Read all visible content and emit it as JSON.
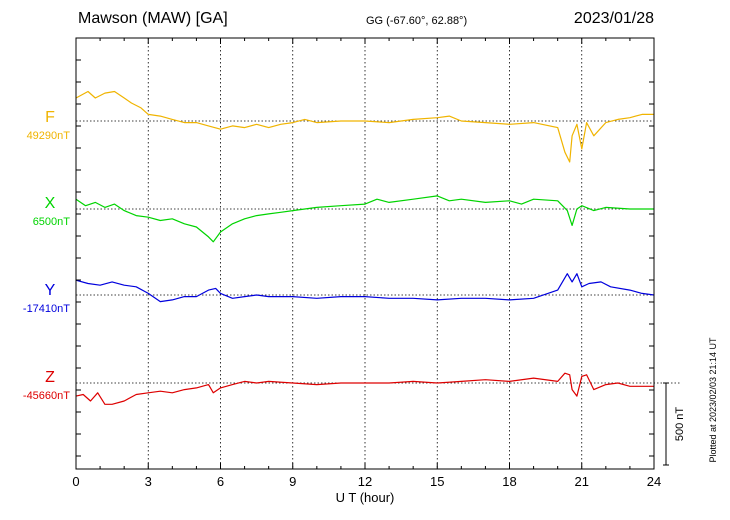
{
  "header": {
    "station": "Mawson (MAW)  [GA]",
    "coords": "GG (-67.60°,  62.88°)",
    "date": "2023/01/28"
  },
  "footer": {
    "plotted": "Plotted at 2023/02/03 21:14 UT"
  },
  "chart_data": {
    "type": "line",
    "xlabel": "U T (hour)",
    "xlim": [
      0,
      24
    ],
    "xticks": [
      0,
      3,
      6,
      9,
      12,
      15,
      18,
      21,
      24
    ],
    "xtick_labels": [
      "0",
      "3",
      "6",
      "9",
      "12",
      "15",
      "18",
      "21",
      "24"
    ],
    "scale_bar": {
      "value_nT": 500,
      "label": "500 nT"
    },
    "series": [
      {
        "name": "F",
        "baseline_label": "49290nT",
        "baseline_nT": 49290,
        "color": "#f0b400",
        "x": [
          0,
          0.5,
          0.8,
          1.2,
          1.6,
          2.0,
          2.3,
          2.7,
          3.0,
          3.5,
          4.0,
          4.5,
          5.0,
          5.5,
          6.0,
          6.5,
          7.0,
          7.5,
          8.0,
          8.5,
          9.0,
          9.5,
          10.0,
          11.0,
          12.0,
          13.0,
          14.0,
          15.0,
          15.5,
          16.0,
          17.0,
          18.0,
          19.0,
          20.0,
          20.3,
          20.5,
          20.6,
          20.8,
          21.0,
          21.2,
          21.5,
          22.0,
          22.5,
          23.0,
          23.5,
          24.0
        ],
        "y": [
          49430,
          49470,
          49430,
          49460,
          49470,
          49430,
          49400,
          49370,
          49330,
          49320,
          49300,
          49280,
          49280,
          49260,
          49240,
          49260,
          49250,
          49270,
          49250,
          49270,
          49280,
          49300,
          49280,
          49290,
          49290,
          49280,
          49300,
          49310,
          49320,
          49290,
          49280,
          49270,
          49280,
          49250,
          49100,
          49040,
          49200,
          49270,
          49120,
          49280,
          49200,
          49280,
          49300,
          49310,
          49330,
          49330
        ]
      },
      {
        "name": "X",
        "baseline_label": "6500nT",
        "baseline_nT": 6500,
        "color": "#00d400",
        "x": [
          0,
          0.4,
          0.8,
          1.2,
          1.6,
          2.0,
          2.5,
          3.0,
          3.5,
          4.0,
          4.5,
          5.0,
          5.5,
          5.7,
          6.0,
          6.5,
          7.0,
          7.5,
          8.0,
          8.5,
          9.0,
          9.5,
          10.0,
          11.0,
          12.0,
          12.5,
          13.0,
          14.0,
          15.0,
          15.5,
          16.0,
          17.0,
          18.0,
          18.5,
          19.0,
          20.0,
          20.4,
          20.6,
          20.8,
          21.0,
          21.5,
          22.0,
          23.0,
          24.0
        ],
        "y": [
          6560,
          6520,
          6540,
          6510,
          6530,
          6490,
          6460,
          6450,
          6430,
          6440,
          6410,
          6390,
          6330,
          6300,
          6360,
          6410,
          6440,
          6460,
          6470,
          6480,
          6490,
          6500,
          6510,
          6520,
          6530,
          6560,
          6540,
          6560,
          6580,
          6550,
          6560,
          6540,
          6550,
          6530,
          6560,
          6550,
          6490,
          6400,
          6500,
          6520,
          6490,
          6510,
          6500,
          6500
        ]
      },
      {
        "name": "Y",
        "baseline_label": "-17410nT",
        "baseline_nT": -17410,
        "color": "#0000dd",
        "x": [
          0,
          0.5,
          1.0,
          1.5,
          2.0,
          2.5,
          3.0,
          3.5,
          4.0,
          4.5,
          5.0,
          5.5,
          5.8,
          6.0,
          6.5,
          7.0,
          7.5,
          8.0,
          9.0,
          10.0,
          11.0,
          12.0,
          13.0,
          14.0,
          15.0,
          16.0,
          17.0,
          18.0,
          19.0,
          20.0,
          20.4,
          20.6,
          20.8,
          21.0,
          21.3,
          21.8,
          22.2,
          23.0,
          23.5,
          24.0
        ],
        "y": [
          -17320,
          -17340,
          -17350,
          -17330,
          -17350,
          -17360,
          -17400,
          -17450,
          -17440,
          -17420,
          -17420,
          -17380,
          -17370,
          -17400,
          -17430,
          -17420,
          -17410,
          -17420,
          -17420,
          -17430,
          -17420,
          -17420,
          -17430,
          -17430,
          -17440,
          -17430,
          -17430,
          -17440,
          -17430,
          -17380,
          -17280,
          -17330,
          -17280,
          -17360,
          -17340,
          -17330,
          -17360,
          -17380,
          -17400,
          -17410
        ]
      },
      {
        "name": "Z",
        "baseline_label": "-45660nT",
        "baseline_nT": -45660,
        "color": "#dd0000",
        "x": [
          0,
          0.3,
          0.6,
          0.9,
          1.2,
          1.5,
          2.0,
          2.5,
          3.0,
          3.5,
          4.0,
          4.5,
          5.0,
          5.5,
          5.7,
          6.0,
          6.5,
          7.0,
          7.5,
          8.0,
          9.0,
          10.0,
          11.0,
          12.0,
          13.0,
          14.0,
          15.0,
          16.0,
          17.0,
          18.0,
          19.0,
          20.0,
          20.3,
          20.5,
          20.6,
          20.8,
          21.0,
          21.2,
          21.5,
          22.0,
          22.5,
          23.0,
          23.5,
          24.0
        ],
        "y": [
          -45740,
          -45730,
          -45770,
          -45720,
          -45790,
          -45790,
          -45770,
          -45730,
          -45720,
          -45710,
          -45720,
          -45700,
          -45690,
          -45670,
          -45720,
          -45690,
          -45670,
          -45650,
          -45660,
          -45650,
          -45660,
          -45670,
          -45660,
          -45660,
          -45660,
          -45650,
          -45660,
          -45650,
          -45640,
          -45650,
          -45630,
          -45650,
          -45600,
          -45610,
          -45700,
          -45740,
          -45620,
          -45610,
          -45700,
          -45670,
          -45660,
          -45680,
          -45680,
          -45680
        ]
      }
    ]
  }
}
